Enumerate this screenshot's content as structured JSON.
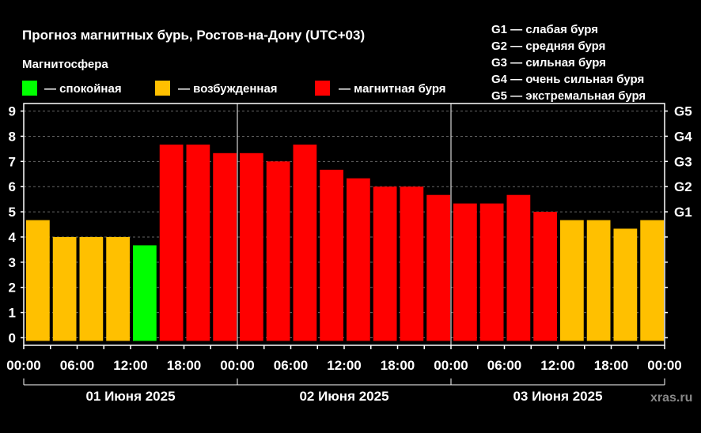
{
  "header": {
    "title": "Прогноз магнитных бурь, Ростов-на-Дону (UTC+03)",
    "subtitle": "Магнитосфера"
  },
  "legend": [
    {
      "label": "— спокойная",
      "color": "#00ff00"
    },
    {
      "label": "— возбужденная",
      "color": "#ffc000"
    },
    {
      "label": "— магнитная буря",
      "color": "#ff0000"
    }
  ],
  "g_scale_legend": [
    "G1 — слабая буря",
    "G2 — средняя буря",
    "G3 — сильная буря",
    "G4 — очень сильная буря",
    "G5 — экстремальная буря"
  ],
  "watermark": "xras.ru",
  "chart_data": {
    "type": "bar",
    "title": "Прогноз магнитных бурь, Ростов-на-Дону (UTC+03)",
    "ylim": [
      -0.3,
      9.3
    ],
    "y_ticks": [
      "0",
      "1",
      "2",
      "3",
      "4",
      "5",
      "6",
      "7",
      "8",
      "9"
    ],
    "right_ticks": [
      {
        "label": "G1",
        "value": 5
      },
      {
        "label": "G2",
        "value": 6
      },
      {
        "label": "G3",
        "value": 7
      },
      {
        "label": "G4",
        "value": 8
      },
      {
        "label": "G5",
        "value": 9
      }
    ],
    "x_tick_labels": [
      "00:00",
      "06:00",
      "12:00",
      "18:00",
      "00:00",
      "06:00",
      "12:00",
      "18:00",
      "00:00",
      "06:00",
      "12:00",
      "18:00",
      "00:00"
    ],
    "day_labels": [
      "01 Июня 2025",
      "02 Июня 2025",
      "03 Июня 2025"
    ],
    "grid": true,
    "colors": {
      "calm": "#00ff00",
      "excited": "#ffc000",
      "storm": "#ff0000"
    },
    "values": [
      4.67,
      4.0,
      4.0,
      4.0,
      3.67,
      7.67,
      7.67,
      7.33,
      7.33,
      7.0,
      7.67,
      6.67,
      6.33,
      6.0,
      6.0,
      5.67,
      5.33,
      5.33,
      5.67,
      5.0,
      4.67,
      4.67,
      4.33,
      4.67
    ],
    "levels": [
      "excited",
      "excited",
      "excited",
      "excited",
      "calm",
      "storm",
      "storm",
      "storm",
      "storm",
      "storm",
      "storm",
      "storm",
      "storm",
      "storm",
      "storm",
      "storm",
      "storm",
      "storm",
      "storm",
      "storm",
      "excited",
      "excited",
      "excited",
      "excited"
    ]
  }
}
